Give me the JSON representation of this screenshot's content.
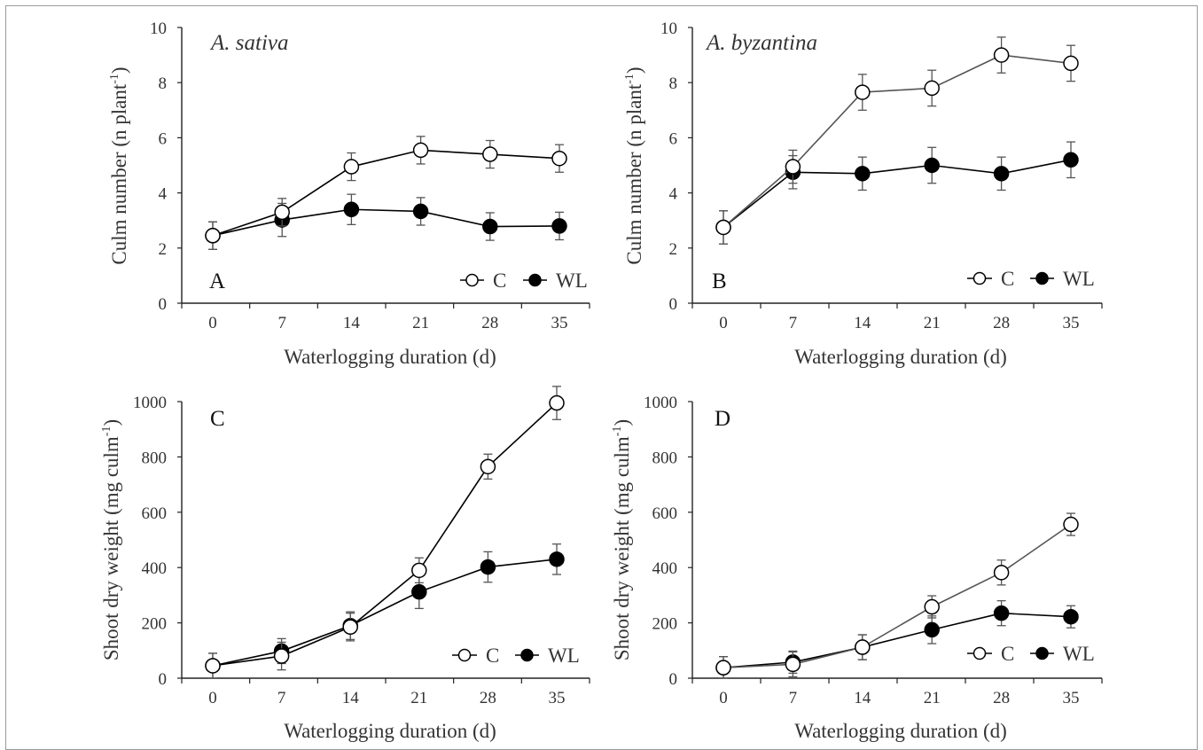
{
  "chart_data": [
    {
      "type": "line",
      "panel_label": "A",
      "title": "A. sativa",
      "xlabel": "Waterlogging duration (d)",
      "ylabel": "Culm number (n plant-1)",
      "ylabel_main": "Culm number (n plant",
      "ylabel_sup": "-1",
      "ylabel_tail": ")",
      "x": [
        0,
        7,
        14,
        21,
        28,
        35
      ],
      "xlim": [
        0,
        35
      ],
      "ylim": [
        0,
        10
      ],
      "yticks": [
        0,
        2,
        4,
        6,
        8,
        10
      ],
      "legend_position": "bottom-right",
      "series": [
        {
          "name": "C",
          "marker": "open-circle",
          "color": "#000000",
          "values": [
            2.45,
            3.3,
            4.95,
            5.55,
            5.4,
            5.25
          ],
          "errors": [
            0.5,
            0.5,
            0.5,
            0.5,
            0.5,
            0.5
          ]
        },
        {
          "name": "WL",
          "marker": "filled-circle",
          "color": "#000000",
          "values": [
            2.45,
            3.02,
            3.4,
            3.33,
            2.78,
            2.8
          ],
          "errors": [
            0.5,
            0.6,
            0.55,
            0.5,
            0.5,
            0.5
          ]
        }
      ]
    },
    {
      "type": "line",
      "panel_label": "B",
      "title": "A. byzantina",
      "xlabel": "Waterlogging duration (d)",
      "ylabel": "Culm number (n plant-1)",
      "ylabel_main": "Culm number (n plant",
      "ylabel_sup": "-1",
      "ylabel_tail": ")",
      "x": [
        0,
        7,
        14,
        21,
        28,
        35
      ],
      "xlim": [
        0,
        35
      ],
      "ylim": [
        0,
        10
      ],
      "yticks": [
        0,
        2,
        4,
        6,
        8,
        10
      ],
      "legend_position": "bottom-right",
      "series": [
        {
          "name": "C",
          "marker": "open-circle",
          "color": "#555555",
          "values": [
            2.75,
            4.95,
            7.65,
            7.8,
            9.0,
            8.7
          ],
          "errors": [
            0.6,
            0.6,
            0.65,
            0.65,
            0.65,
            0.65
          ]
        },
        {
          "name": "WL",
          "marker": "filled-circle",
          "color": "#000000",
          "values": [
            2.75,
            4.75,
            4.7,
            5.0,
            4.7,
            5.2
          ],
          "errors": [
            0.6,
            0.6,
            0.6,
            0.65,
            0.6,
            0.65
          ]
        }
      ]
    },
    {
      "type": "line",
      "panel_label": "C",
      "title": "",
      "xlabel": "Waterlogging duration (d)",
      "ylabel": "Shoot dry weight (mg culm-1)",
      "ylabel_main": "Shoot dry weight (mg culm",
      "ylabel_sup": "-1",
      "ylabel_tail": ")",
      "x": [
        0,
        7,
        14,
        21,
        28,
        35
      ],
      "xlim": [
        0,
        35
      ],
      "ylim": [
        0,
        1000
      ],
      "yticks": [
        0,
        200,
        400,
        600,
        800,
        1000
      ],
      "legend_position": "bottom-right",
      "series": [
        {
          "name": "C",
          "marker": "open-circle",
          "color": "#000000",
          "values": [
            45,
            80,
            185,
            390,
            765,
            995
          ],
          "errors": [
            45,
            50,
            50,
            45,
            45,
            60
          ]
        },
        {
          "name": "WL",
          "marker": "filled-circle",
          "color": "#000000",
          "values": [
            45,
            98,
            190,
            312,
            402,
            430
          ],
          "errors": [
            45,
            45,
            50,
            60,
            55,
            55
          ]
        }
      ]
    },
    {
      "type": "line",
      "panel_label": "D",
      "title": "",
      "xlabel": "Waterlogging duration (d)",
      "ylabel": "Shoot dry weight (mg culm-1)",
      "ylabel_main": "Shoot dry weight (mg culm",
      "ylabel_sup": "-1",
      "ylabel_tail": ")",
      "x": [
        0,
        7,
        14,
        21,
        28,
        35
      ],
      "xlim": [
        0,
        35
      ],
      "ylim": [
        0,
        1000
      ],
      "yticks": [
        0,
        200,
        400,
        600,
        800,
        1000
      ],
      "legend_position": "bottom-right",
      "series": [
        {
          "name": "C",
          "marker": "open-circle",
          "color": "#555555",
          "values": [
            38,
            50,
            112,
            258,
            382,
            556
          ],
          "errors": [
            40,
            45,
            45,
            40,
            45,
            40
          ]
        },
        {
          "name": "WL",
          "marker": "filled-circle",
          "color": "#000000",
          "values": [
            38,
            58,
            112,
            175,
            235,
            222
          ],
          "errors": [
            40,
            40,
            45,
            50,
            45,
            40
          ]
        }
      ]
    }
  ]
}
